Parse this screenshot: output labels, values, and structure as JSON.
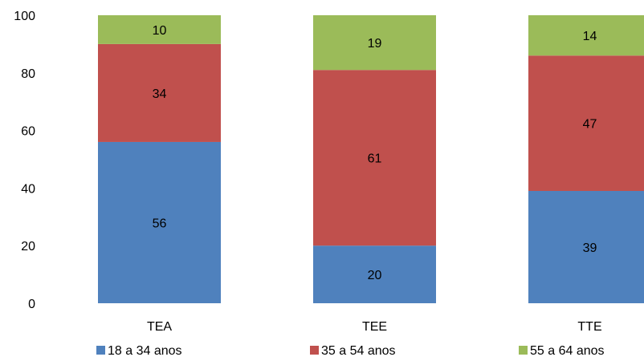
{
  "chart_data": {
    "type": "bar",
    "stacked": true,
    "categories": [
      "TEA",
      "TEE",
      "TTE"
    ],
    "series": [
      {
        "name": "18 a 34 anos",
        "values": [
          56,
          20,
          39
        ],
        "color": "#4F81BD"
      },
      {
        "name": "35 a 54 anos",
        "values": [
          34,
          61,
          47
        ],
        "color": "#C0504D"
      },
      {
        "name": "55 a 64 anos",
        "values": [
          10,
          19,
          14
        ],
        "color": "#9BBB59"
      }
    ],
    "ylim": [
      0,
      100
    ],
    "yticks": [
      0,
      20,
      40,
      60,
      80,
      100
    ],
    "title": "",
    "xlabel": "",
    "ylabel": "",
    "grid": false,
    "legend_position": "bottom"
  }
}
